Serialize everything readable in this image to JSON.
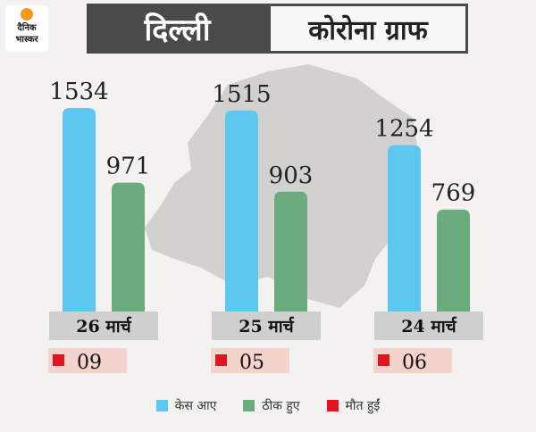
{
  "header": {
    "logo_line1": "दैनिक",
    "logo_line2": "भास्कर",
    "title_left": "दिल्ली",
    "title_right": "कोरोना ग्राफ"
  },
  "colors": {
    "cases": "#5cc8ef",
    "recovered": "#6aac7d",
    "deaths": "#e0161e",
    "date_box": "#cfcfcf",
    "death_box": "#f4d3cd"
  },
  "chart_data": {
    "type": "bar",
    "categories": [
      "26 मार्च",
      "25 मार्च",
      "24 मार्च"
    ],
    "series": [
      {
        "name": "केस आए",
        "values": [
          1534,
          1515,
          1254
        ]
      },
      {
        "name": "ठीक हुए",
        "values": [
          971,
          903,
          769
        ]
      },
      {
        "name": "मौत हुईं",
        "values": [
          "09",
          "05",
          "06"
        ]
      }
    ],
    "ylim": [
      0,
      1534
    ],
    "grid": false,
    "legend_position": "bottom"
  }
}
